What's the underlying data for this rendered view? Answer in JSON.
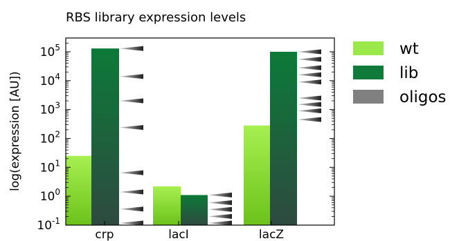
{
  "chart_data": {
    "type": "bar",
    "title": "RBS library expression levels",
    "ylabel": "log(expression [AU])",
    "xlabel": "",
    "yscale": "log",
    "ylim": [
      0.1,
      300000
    ],
    "yticks": [
      {
        "value": 0.1,
        "base": "10",
        "exp": "-1"
      },
      {
        "value": 1,
        "base": "10",
        "exp": "0"
      },
      {
        "value": 10,
        "base": "10",
        "exp": "1"
      },
      {
        "value": 100,
        "base": "10",
        "exp": "2"
      },
      {
        "value": 1000,
        "base": "10",
        "exp": "3"
      },
      {
        "value": 10000,
        "base": "10",
        "exp": "4"
      },
      {
        "value": 100000,
        "base": "10",
        "exp": "5"
      }
    ],
    "categories": [
      "crp",
      "lacI",
      "lacZ"
    ],
    "series": [
      {
        "name": "wt",
        "values": [
          25,
          2.2,
          280
        ]
      },
      {
        "name": "lib",
        "values": [
          130000,
          1.1,
          100000
        ]
      },
      {
        "name": "oligos",
        "values": [
          [
            130000,
            14000,
            2000,
            240,
            6.5,
            1.4,
            0.36,
            0.1
          ],
          [
            1.1,
            0.6,
            0.35,
            0.2,
            0.1
          ],
          [
            100000,
            55000,
            28000,
            16000,
            9000,
            2500,
            1500,
            900,
            450
          ]
        ]
      }
    ],
    "legend_position": "right",
    "colors": {
      "wt": "#9ae84a",
      "lib": "#0f7a3a",
      "oligos": "#808080"
    }
  }
}
